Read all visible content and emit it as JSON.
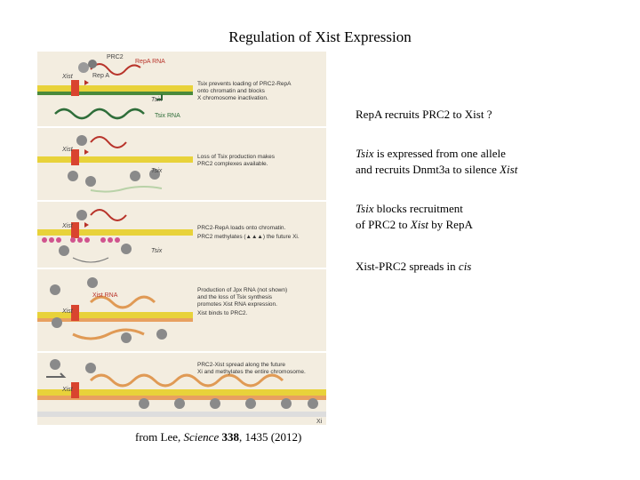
{
  "title": "Regulation of Xist Expression",
  "figure": {
    "top_labels": {
      "prc2": "PRC2",
      "repa_rna": "RepA RNA",
      "xist": "Xist",
      "repa": "Rep A",
      "tsix": "Tsix",
      "tsix_rna": "Tsix RNA"
    },
    "captions": [
      [
        "Tsix prevents loading of PRC2-RepA",
        "onto chromatin and blocks",
        "X chromosome inactivation."
      ],
      [
        "Loss of Tsix production makes",
        "PRC2 complexes available."
      ],
      [
        "PRC2-RepA loads onto chromatin.",
        "PRC2 methylates (▲▲▲) the future Xi."
      ],
      [
        "Production of Jpx RNA (not shown)",
        "and the loss of Tsix synthesis",
        "promotes Xist RNA expression.",
        "Xist binds to PRC2."
      ],
      [
        "PRC2-Xist spread along the future",
        "Xi and methylates the entire chromosome."
      ]
    ],
    "xist_rna": "Xist RNA",
    "xi": "Xi"
  },
  "notes": {
    "n1": "RepA recruits PRC2 to Xist ?",
    "n2_l1_em": "Tsix",
    "n2_l1_rest": " is expressed from one allele",
    "n2_l2_a": "and recruits Dnmt3a to silence ",
    "n2_l2_em": "Xist",
    "n3_l1_em": "Tsix",
    "n3_l1_rest": " blocks recruitment",
    "n3_l2_a": "of PRC2 to ",
    "n3_l2_em": "Xist",
    "n3_l2_b": " by RepA",
    "n4_a": "Xist-PRC2 spreads in ",
    "n4_em": "cis"
  },
  "credit": {
    "a": "from Lee, ",
    "journal": "Science",
    "b": " ",
    "volume": "338",
    "c": ", 1435 (2012)"
  },
  "colors": {
    "panel_bg": "#f3ede0",
    "dna_green": "#4a8a3c",
    "dna_yellow": "#e8d23a",
    "rna_red": "#b8332a",
    "xist_orange": "#e09a55",
    "prc2_gray": "#8a8a8a"
  }
}
